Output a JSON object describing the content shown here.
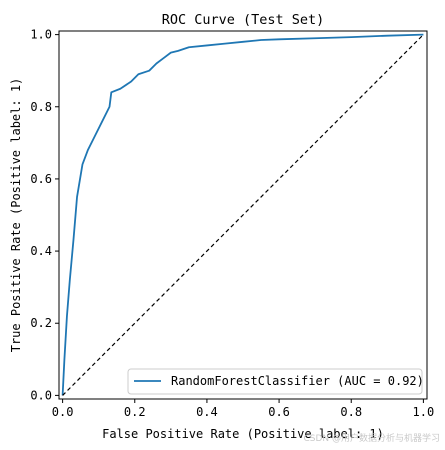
{
  "chart_data": {
    "type": "line",
    "title": "ROC Curve (Test Set)",
    "xlabel": "False Positive Rate (Positive label: 1)",
    "ylabel": "True Positive Rate (Positive label: 1)",
    "xlim": [
      0,
      1
    ],
    "ylim": [
      0,
      1
    ],
    "xticks": [
      "0.0",
      "0.2",
      "0.4",
      "0.6",
      "0.8",
      "1.0"
    ],
    "yticks": [
      "0.0",
      "0.2",
      "0.4",
      "0.6",
      "0.8",
      "1.0"
    ],
    "grid": false,
    "legend": {
      "position": "lower-right"
    },
    "series": [
      {
        "name": "RandomForestClassifier (AUC = 0.92)",
        "color": "#1f77b4",
        "style": "solid",
        "x": [
          0,
          0.005,
          0.012,
          0.02,
          0.03,
          0.04,
          0.055,
          0.07,
          0.09,
          0.11,
          0.13,
          0.135,
          0.16,
          0.19,
          0.21,
          0.24,
          0.26,
          0.28,
          0.3,
          0.32,
          0.35,
          0.4,
          0.45,
          0.5,
          0.55,
          0.6,
          0.7,
          0.8,
          0.9,
          1.0
        ],
        "y": [
          0,
          0.1,
          0.22,
          0.32,
          0.43,
          0.55,
          0.64,
          0.68,
          0.72,
          0.76,
          0.8,
          0.84,
          0.85,
          0.87,
          0.89,
          0.9,
          0.92,
          0.935,
          0.95,
          0.955,
          0.965,
          0.97,
          0.975,
          0.98,
          0.985,
          0.987,
          0.99,
          0.993,
          0.997,
          1.0
        ]
      },
      {
        "color": "#000000",
        "style": "dashed",
        "x": [
          0,
          1
        ],
        "y": [
          0,
          1
        ]
      }
    ]
  },
  "watermark": "CSDN @用户数据分析与机器学习"
}
